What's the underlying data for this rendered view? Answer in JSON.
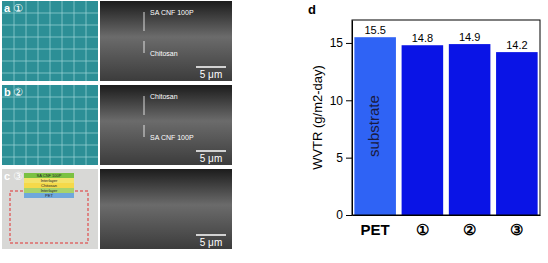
{
  "chart_data": {
    "type": "bar",
    "panel_label": "d",
    "y_label": "WVTR (g/m2-day)",
    "categories": [
      "PET",
      "①",
      "②",
      "③"
    ],
    "values": [
      15.5,
      14.8,
      14.9,
      14.2
    ],
    "colors": [
      "#2f63f5",
      "#0a14e6",
      "#0a14e6",
      "#0a14e6"
    ],
    "ylim": [
      0,
      17
    ],
    "yticks": [
      0,
      5,
      10,
      15
    ],
    "data_labels": true,
    "grid": false,
    "annotations": [
      "substrate"
    ]
  },
  "panels": [
    {
      "label": "a",
      "number": "①",
      "texts": [
        "SA CNF 100P",
        "Chitosan"
      ],
      "scale_bar": "5 μm"
    },
    {
      "label": "b",
      "number": "②",
      "texts": [
        "Chitosan",
        "SA CNF 100P"
      ],
      "scale_bar": "5 μm"
    },
    {
      "label": "c",
      "number": "③",
      "layers": [
        "SA CNF 100P",
        "Interlayer",
        "Chitosan",
        "Interlayer",
        "PET"
      ],
      "scale_bar": "5 μm"
    }
  ]
}
